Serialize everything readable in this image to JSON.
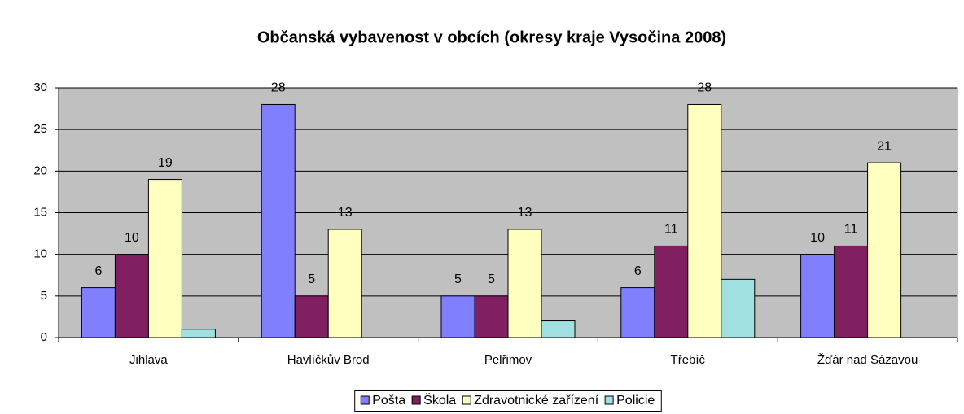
{
  "chart_data": {
    "type": "bar",
    "title": "Občanská vybavenost v obcích (okresy kraje Vysočina 2008)",
    "categories": [
      "Jihlava",
      "Havlíčkův Brod",
      "Pelřimov",
      "Třebíč",
      "Žďár nad Sázavou"
    ],
    "series": [
      {
        "name": "Pošta",
        "color": "#8080ff",
        "values": [
          6,
          28,
          5,
          6,
          10
        ],
        "data_labels": true
      },
      {
        "name": "Škola",
        "color": "#802060",
        "values": [
          10,
          5,
          5,
          11,
          11
        ],
        "data_labels": true
      },
      {
        "name": "Zdravotnické zařízení",
        "color": "#ffffc0",
        "values": [
          19,
          13,
          13,
          28,
          21
        ],
        "data_labels": true
      },
      {
        "name": "Policie",
        "color": "#a0e0e0",
        "values": [
          1,
          0,
          2,
          7,
          0
        ],
        "data_labels": false
      }
    ],
    "ylim": [
      0,
      30
    ],
    "yticks": [
      0,
      5,
      10,
      15,
      20,
      25,
      30
    ],
    "grid": true,
    "legend": "bottom"
  }
}
